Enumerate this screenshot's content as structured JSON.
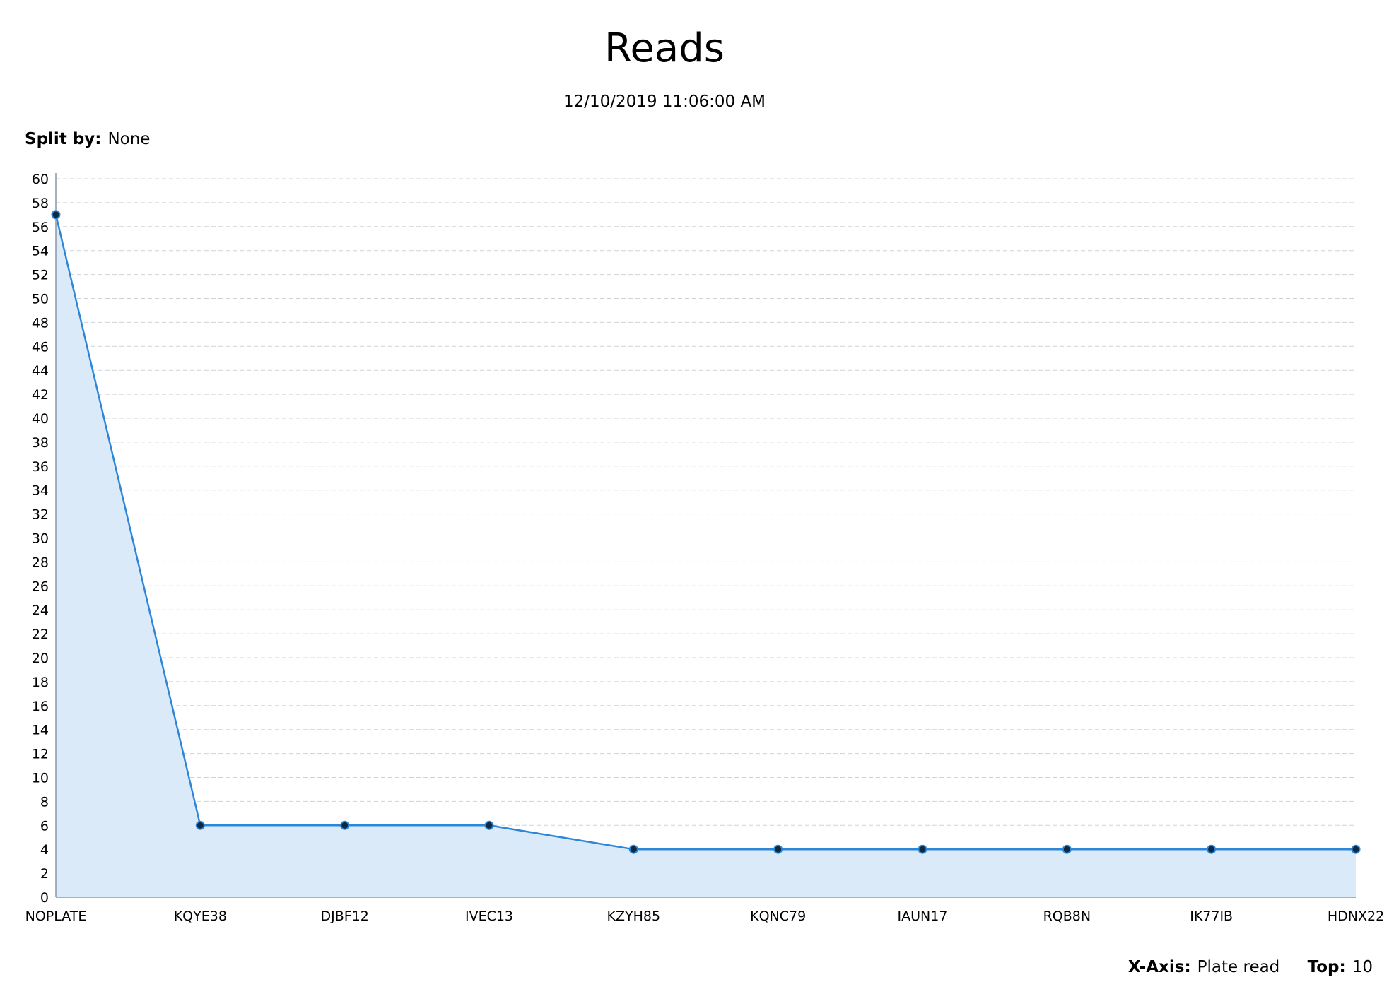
{
  "chart_data": {
    "type": "area",
    "title": "Reads",
    "subtitle": "12/10/2019 11:06:00 AM",
    "xlabel": "",
    "ylabel": "",
    "categories": [
      "NOPLATE",
      "KQYE38",
      "DJBF12",
      "IVEC13",
      "KZYH85",
      "KQNC79",
      "IAUN17",
      "RQB8N",
      "IK77IB",
      "HDNX22"
    ],
    "series": [
      {
        "values": [
          57,
          6,
          6,
          6,
          4,
          4,
          4,
          4,
          4,
          4
        ]
      }
    ],
    "ylim": [
      0,
      60
    ],
    "ytick_step": 2,
    "grid": true,
    "grid_style": "dashed",
    "legend": "none",
    "colors": {
      "line": "#2e86d8",
      "fill": "#dbeaf9",
      "marker": "#0d2a44",
      "grid": "#cdd2d8",
      "axis": "#8a96a8"
    }
  },
  "controls": {
    "split_by_label": "Split by:",
    "split_by_value": "None",
    "x_axis_label": "X-Axis:",
    "x_axis_value": "Plate read",
    "top_label": "Top:",
    "top_value": "10"
  }
}
